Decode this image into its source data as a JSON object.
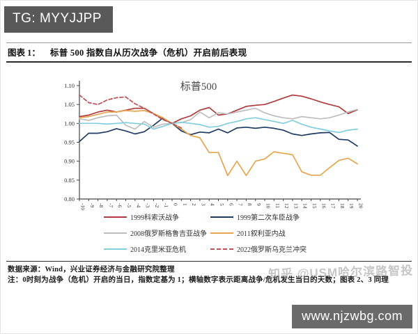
{
  "header": {
    "tg_badge": "TG: MYYJJPP"
  },
  "figure": {
    "label": "图表 1：",
    "title": "标普 500 指数自从历次战争（危机）开启前后表现"
  },
  "chart_data": {
    "type": "line",
    "title": "标普500",
    "xlabel": "",
    "ylabel": "",
    "xlim": [
      -10,
      20
    ],
    "ylim": [
      0.8,
      1.1
    ],
    "grid": false,
    "legend_position": "bottom",
    "y_ticks": [
      0.8,
      0.85,
      0.9,
      0.95,
      1.0,
      1.05,
      1.1
    ],
    "x": [
      -10,
      -9,
      -8,
      -7,
      -6,
      -5,
      -4,
      -3,
      -2,
      -1,
      0,
      1,
      2,
      3,
      4,
      5,
      6,
      7,
      8,
      9,
      10,
      11,
      12,
      13,
      14,
      15,
      16,
      17,
      18,
      19,
      20
    ],
    "series": [
      {
        "name": "1999科索沃战争",
        "color": "#b03a3c",
        "dashed": false,
        "values": [
          1.018,
          1.022,
          1.03,
          1.035,
          1.03,
          1.035,
          1.04,
          1.04,
          1.026,
          1.012,
          1.0,
          1.012,
          1.02,
          1.035,
          1.042,
          1.022,
          1.025,
          1.035,
          1.045,
          1.048,
          1.05,
          1.058,
          1.067,
          1.075,
          1.072,
          1.065,
          1.057,
          1.05,
          1.044,
          1.026,
          1.036
        ]
      },
      {
        "name": "1999第二次车臣战争",
        "color": "#1f3a63",
        "dashed": false,
        "values": [
          0.952,
          0.974,
          0.974,
          0.978,
          0.986,
          0.98,
          0.972,
          0.978,
          0.995,
          1.014,
          1.0,
          0.98,
          0.97,
          0.977,
          0.975,
          0.985,
          0.975,
          0.988,
          0.99,
          0.987,
          0.99,
          0.987,
          0.982,
          0.972,
          0.968,
          0.972,
          0.975,
          0.976,
          0.958,
          0.956,
          0.94
        ]
      },
      {
        "name": "2008俄罗斯格鲁吉亚战争",
        "color": "#bdbdbd",
        "dashed": false,
        "values": [
          1.012,
          1.008,
          1.015,
          1.02,
          1.022,
          0.995,
          0.985,
          1.005,
          0.99,
          0.998,
          1.0,
          1.002,
          1.01,
          1.03,
          1.015,
          1.028,
          1.025,
          1.03,
          1.035,
          1.04,
          1.028,
          1.02,
          1.015,
          1.012,
          1.018,
          1.015,
          1.012,
          1.015,
          1.022,
          1.03,
          1.037
        ]
      },
      {
        "name": "2011叙利亚内战",
        "color": "#e6a54e",
        "dashed": false,
        "values": [
          1.015,
          1.018,
          1.024,
          1.03,
          1.03,
          1.034,
          1.032,
          1.034,
          1.026,
          1.015,
          1.0,
          0.985,
          0.968,
          0.962,
          0.923,
          0.923,
          0.862,
          0.9,
          0.862,
          0.9,
          0.906,
          0.925,
          0.921,
          0.917,
          0.872,
          0.863,
          0.863,
          0.883,
          0.902,
          0.908,
          0.893
        ]
      },
      {
        "name": "2014克里米亚危机",
        "color": "#82cdde",
        "dashed": false,
        "values": [
          1.0,
          1.0,
          1.0,
          0.998,
          1.0,
          1.002,
          1.0,
          0.998,
          0.985,
          0.992,
          1.0,
          1.003,
          1.0,
          0.997,
          0.99,
          0.992,
          1.0,
          1.005,
          1.012,
          1.015,
          1.01,
          1.005,
          1.0,
          1.008,
          0.998,
          0.99,
          0.985,
          0.98,
          0.976,
          0.982,
          0.985
        ]
      },
      {
        "name": "2022俄罗斯乌克兰冲突",
        "color": "#c05056",
        "dashed": true,
        "values": [
          1.075,
          1.055,
          1.05,
          1.062,
          1.068,
          1.07,
          1.052,
          1.04,
          1.025,
          1.01,
          1.0,
          0.988,
          null,
          null,
          null,
          null,
          null,
          null,
          null,
          null,
          null,
          null,
          null,
          null,
          null,
          null,
          null,
          null,
          null,
          null,
          null
        ]
      }
    ]
  },
  "footer": {
    "source": "数据来源：Wind，兴业证券经济与金融研究院整理",
    "note": "注：0时刻为战争（危机）开启的当日，指数定基为 1；横轴数字表示距离战争/危机发生当日的天数；图表 2、3 同理"
  },
  "watermark": "知乎 @USM哈尔滨路智投",
  "url_banner": "www.njzwbg.com"
}
